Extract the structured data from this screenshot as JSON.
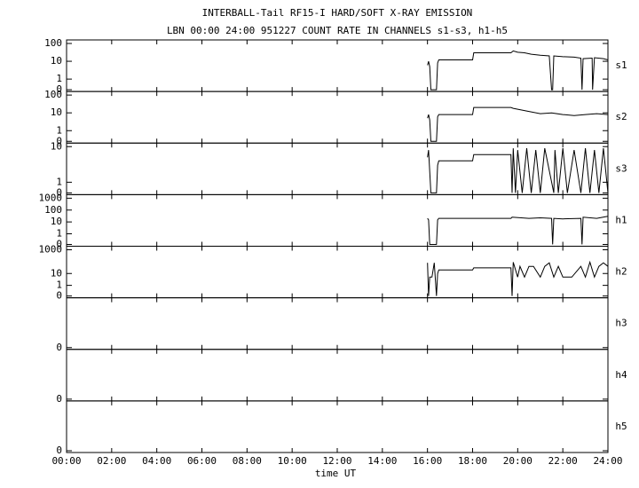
{
  "chart_data": {
    "type": "line",
    "title": "INTERBALL-Tail RF15-I HARD/SOFT X-RAY EMISSION",
    "subtitle": "LBN 00:00 24:00 951227  COUNT RATE IN CHANNELS s1-s3, h1-h5",
    "xlabel": "time UT",
    "xlim": [
      0,
      24
    ],
    "xticks": [
      {
        "value": 0,
        "label": "00:00"
      },
      {
        "value": 2,
        "label": "02:00"
      },
      {
        "value": 4,
        "label": "04:00"
      },
      {
        "value": 6,
        "label": "06:00"
      },
      {
        "value": 8,
        "label": "08:00"
      },
      {
        "value": 10,
        "label": "10:00"
      },
      {
        "value": 12,
        "label": "12:00"
      },
      {
        "value": 14,
        "label": "14:00"
      },
      {
        "value": 16,
        "label": "16:00"
      },
      {
        "value": 18,
        "label": "18:00"
      },
      {
        "value": 20,
        "label": "20:00"
      },
      {
        "value": 22,
        "label": "22:00"
      },
      {
        "value": 24,
        "label": "24:00"
      }
    ],
    "yscale": "log",
    "color": "#000000",
    "panels": [
      {
        "name": "s1",
        "ylim": [
          0,
          100
        ],
        "yticks": [
          0,
          1,
          10,
          100
        ],
        "x": [
          16.0,
          16.05,
          16.1,
          16.15,
          16.3,
          16.4,
          16.45,
          16.5,
          18.0,
          18.05,
          19.7,
          19.8,
          20.0,
          20.3,
          20.6,
          21.0,
          21.4,
          21.5,
          21.55,
          21.6,
          22.0,
          22.5,
          22.8,
          22.85,
          22.9,
          23.3,
          23.32,
          23.4,
          23.8,
          24.0
        ],
        "values": [
          6,
          10,
          5,
          0,
          0,
          0,
          8,
          12,
          12,
          30,
          30,
          38,
          32,
          30,
          25,
          22,
          20,
          0,
          0,
          20,
          18,
          17,
          15,
          0,
          14,
          15,
          0,
          16,
          14,
          12
        ]
      },
      {
        "name": "s2",
        "ylim": [
          0,
          100
        ],
        "yticks": [
          0,
          1,
          10,
          100
        ],
        "x": [
          16.0,
          16.05,
          16.1,
          16.15,
          16.4,
          16.45,
          16.5,
          18.0,
          18.05,
          19.7,
          19.8,
          20.5,
          21.0,
          21.5,
          22.0,
          22.5,
          23.0,
          23.5,
          24.0
        ],
        "values": [
          5,
          8,
          4,
          0,
          0,
          6,
          8,
          8,
          20,
          20,
          18,
          12,
          9,
          10,
          8,
          7,
          8,
          9,
          8
        ]
      },
      {
        "name": "s3",
        "ylim": [
          0,
          10
        ],
        "yticks": [
          0,
          1,
          10
        ],
        "x": [
          16.0,
          16.05,
          16.1,
          16.15,
          16.4,
          16.45,
          16.5,
          18.0,
          18.05,
          19.7,
          19.75,
          19.8,
          19.9,
          20.0,
          20.2,
          20.4,
          20.6,
          20.8,
          21.0,
          21.2,
          21.6,
          21.65,
          21.8,
          22.0,
          22.2,
          22.5,
          22.8,
          23.0,
          23.2,
          23.4,
          23.6,
          23.8,
          24.0
        ],
        "values": [
          5,
          8,
          2,
          0,
          0,
          3,
          4,
          4,
          6,
          6,
          0,
          9,
          0,
          8,
          0,
          9,
          0,
          8,
          0,
          9,
          0,
          8,
          0,
          9,
          0,
          8,
          0,
          9,
          0,
          8,
          0,
          9,
          0
        ]
      },
      {
        "name": "h1",
        "ylim": [
          0,
          1000
        ],
        "yticks": [
          0,
          1,
          10,
          100,
          1000
        ],
        "x": [
          16.0,
          16.05,
          16.1,
          16.4,
          16.45,
          16.5,
          18.0,
          19.7,
          19.75,
          20.5,
          21.0,
          21.5,
          21.55,
          21.6,
          22.0,
          22.8,
          22.85,
          22.9,
          23.5,
          24.0
        ],
        "values": [
          20,
          15,
          0,
          0,
          15,
          20,
          20,
          20,
          25,
          20,
          22,
          20,
          0,
          20,
          18,
          20,
          0,
          25,
          20,
          30
        ]
      },
      {
        "name": "h2",
        "ylim": [
          0,
          1000
        ],
        "yticks": [
          0,
          1,
          10,
          1000
        ],
        "x": [
          16.0,
          16.05,
          16.1,
          16.2,
          16.3,
          16.4,
          16.45,
          16.5,
          18.0,
          18.05,
          19.7,
          19.75,
          19.8,
          20.0,
          20.1,
          20.3,
          20.5,
          20.7,
          21.0,
          21.2,
          21.4,
          21.6,
          21.8,
          22.0,
          22.4,
          22.8,
          23.0,
          23.2,
          23.4,
          23.6,
          23.8,
          24.0
        ],
        "values": [
          80,
          0,
          5,
          5,
          80,
          0,
          10,
          20,
          20,
          30,
          30,
          0,
          90,
          5,
          40,
          5,
          40,
          40,
          5,
          40,
          80,
          5,
          40,
          5,
          5,
          40,
          5,
          90,
          5,
          40,
          80,
          40
        ]
      },
      {
        "name": "h3",
        "yticks": [
          0
        ],
        "x": [],
        "values": []
      },
      {
        "name": "h4",
        "yticks": [
          0
        ],
        "x": [],
        "values": []
      },
      {
        "name": "h5",
        "yticks": [
          0
        ],
        "x": [],
        "values": []
      }
    ]
  }
}
